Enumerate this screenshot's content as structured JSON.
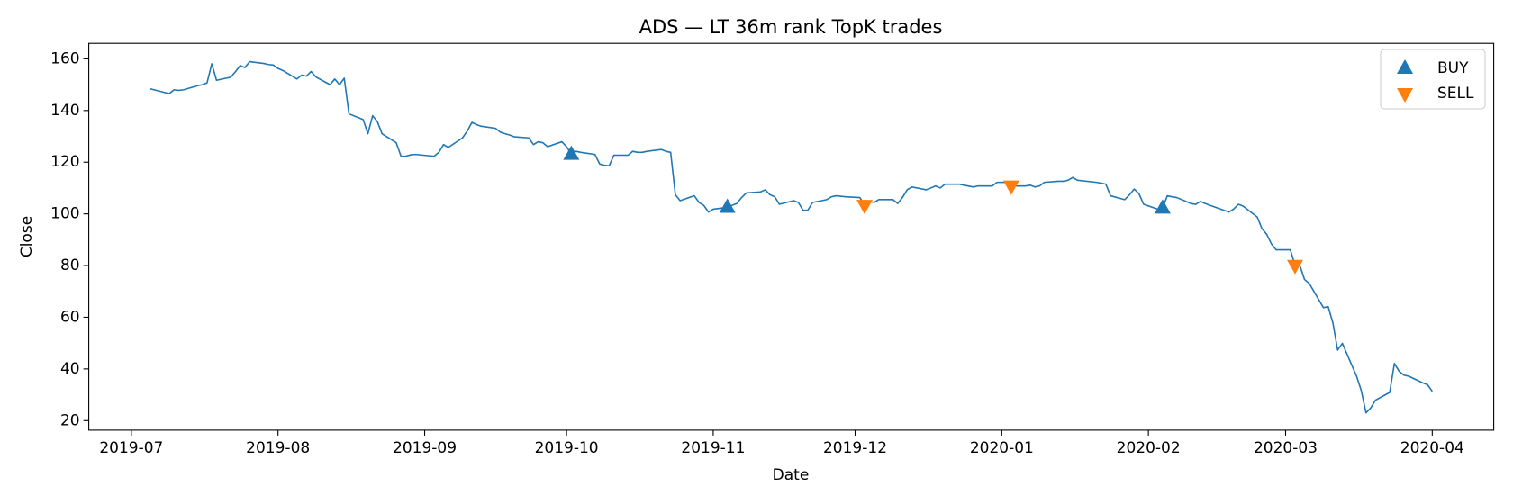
{
  "chart_data": {
    "type": "line",
    "title": "ADS — LT 36m rank TopK trades",
    "xlabel": "Date",
    "ylabel": "Close",
    "color": "#1f77b4",
    "x": [
      "2019-07-05",
      "2019-07-08",
      "2019-07-09",
      "2019-07-10",
      "2019-07-11",
      "2019-07-12",
      "2019-07-15",
      "2019-07-16",
      "2019-07-17",
      "2019-07-18",
      "2019-07-19",
      "2019-07-22",
      "2019-07-23",
      "2019-07-24",
      "2019-07-25",
      "2019-07-26",
      "2019-07-29",
      "2019-07-30",
      "2019-07-31",
      "2019-08-01",
      "2019-08-02",
      "2019-08-05",
      "2019-08-06",
      "2019-08-07",
      "2019-08-08",
      "2019-08-09",
      "2019-08-12",
      "2019-08-13",
      "2019-08-14",
      "2019-08-15",
      "2019-08-16",
      "2019-08-19",
      "2019-08-20",
      "2019-08-21",
      "2019-08-22",
      "2019-08-23",
      "2019-08-26",
      "2019-08-27",
      "2019-08-28",
      "2019-08-29",
      "2019-08-30",
      "2019-09-03",
      "2019-09-04",
      "2019-09-05",
      "2019-09-06",
      "2019-09-09",
      "2019-09-10",
      "2019-09-11",
      "2019-09-12",
      "2019-09-13",
      "2019-09-16",
      "2019-09-17",
      "2019-09-18",
      "2019-09-19",
      "2019-09-20",
      "2019-09-23",
      "2019-09-24",
      "2019-09-25",
      "2019-09-26",
      "2019-09-27",
      "2019-09-30",
      "2019-10-01",
      "2019-10-02",
      "2019-10-03",
      "2019-10-04",
      "2019-10-07",
      "2019-10-08",
      "2019-10-09",
      "2019-10-10",
      "2019-10-11",
      "2019-10-14",
      "2019-10-15",
      "2019-10-16",
      "2019-10-17",
      "2019-10-18",
      "2019-10-21",
      "2019-10-22",
      "2019-10-23",
      "2019-10-24",
      "2019-10-25",
      "2019-10-28",
      "2019-10-29",
      "2019-10-30",
      "2019-10-31",
      "2019-11-01",
      "2019-11-04",
      "2019-11-05",
      "2019-11-06",
      "2019-11-07",
      "2019-11-08",
      "2019-11-11",
      "2019-11-12",
      "2019-11-13",
      "2019-11-14",
      "2019-11-15",
      "2019-11-18",
      "2019-11-19",
      "2019-11-20",
      "2019-11-21",
      "2019-11-22",
      "2019-11-25",
      "2019-11-26",
      "2019-11-27",
      "2019-11-29",
      "2019-12-02",
      "2019-12-03",
      "2019-12-04",
      "2019-12-05",
      "2019-12-06",
      "2019-12-09",
      "2019-12-10",
      "2019-12-11",
      "2019-12-12",
      "2019-12-13",
      "2019-12-16",
      "2019-12-17",
      "2019-12-18",
      "2019-12-19",
      "2019-12-20",
      "2019-12-23",
      "2019-12-24",
      "2019-12-26",
      "2019-12-27",
      "2019-12-30",
      "2019-12-31",
      "2020-01-02",
      "2020-01-03",
      "2020-01-06",
      "2020-01-07",
      "2020-01-08",
      "2020-01-09",
      "2020-01-10",
      "2020-01-13",
      "2020-01-14",
      "2020-01-15",
      "2020-01-16",
      "2020-01-17",
      "2020-01-21",
      "2020-01-22",
      "2020-01-23",
      "2020-01-24",
      "2020-01-27",
      "2020-01-28",
      "2020-01-29",
      "2020-01-30",
      "2020-01-31",
      "2020-02-03",
      "2020-02-04",
      "2020-02-05",
      "2020-02-06",
      "2020-02-07",
      "2020-02-10",
      "2020-02-11",
      "2020-02-12",
      "2020-02-13",
      "2020-02-14",
      "2020-02-18",
      "2020-02-19",
      "2020-02-20",
      "2020-02-21",
      "2020-02-24",
      "2020-02-25",
      "2020-02-26",
      "2020-02-27",
      "2020-02-28",
      "2020-03-02",
      "2020-03-03",
      "2020-03-04",
      "2020-03-05",
      "2020-03-06",
      "2020-03-09",
      "2020-03-10",
      "2020-03-11",
      "2020-03-12",
      "2020-03-13",
      "2020-03-16",
      "2020-03-17",
      "2020-03-18",
      "2020-03-19",
      "2020-03-20",
      "2020-03-23",
      "2020-03-24",
      "2020-03-25",
      "2020-03-26",
      "2020-03-27",
      "2020-03-30",
      "2020-03-31",
      "2020-04-01"
    ],
    "values": [
      148.4,
      147,
      146.5,
      148,
      147.8,
      148,
      149.6,
      150,
      150.7,
      158.1,
      151.7,
      152.9,
      155,
      157.4,
      156.6,
      158.9,
      158.2,
      157.8,
      157.6,
      156.3,
      155.5,
      152.2,
      153.7,
      153.3,
      155.1,
      153,
      150,
      152.2,
      150,
      152.5,
      138.7,
      136.5,
      131,
      138,
      135.7,
      131,
      127.5,
      122.3,
      122.3,
      122.8,
      123,
      122.3,
      123.8,
      126.8,
      125.7,
      129.4,
      132,
      135.4,
      134.5,
      133.9,
      133.1,
      131.6,
      131,
      130.5,
      129.8,
      129.4,
      126.8,
      127.9,
      127.5,
      126,
      127.9,
      126,
      123,
      124.2,
      123.8,
      123,
      119.3,
      118.8,
      118.6,
      122.7,
      122.7,
      124.2,
      123.8,
      123.8,
      124.2,
      124.9,
      124.2,
      123.8,
      107.4,
      105.1,
      107,
      104.4,
      103.3,
      100.7,
      101.8,
      102.5,
      103.3,
      104,
      106.3,
      108.1,
      108.5,
      109.3,
      107.4,
      106.6,
      103.7,
      105.1,
      104.4,
      101.4,
      101.4,
      104.4,
      105.5,
      106.6,
      107,
      106.6,
      106.3,
      103.3,
      104.8,
      104.4,
      105.5,
      105.5,
      104,
      106.3,
      109.3,
      110.4,
      109.3,
      110,
      110.8,
      110,
      111.5,
      111.5,
      111.1,
      110.4,
      110.8,
      110.8,
      112.2,
      112.2,
      110.8,
      110.8,
      111.1,
      110.4,
      110.8,
      112.2,
      112.6,
      112.6,
      113,
      114.1,
      113,
      112.2,
      111.9,
      111.5,
      107,
      105.5,
      107.4,
      109.6,
      107.8,
      103.7,
      101.8,
      102.2,
      107,
      106.6,
      106.3,
      104,
      103.7,
      104.8,
      104,
      103.3,
      100.7,
      101.8,
      103.7,
      103,
      98.8,
      94.3,
      92.1,
      88.4,
      86.1,
      86.1,
      80.1,
      80.1,
      74.6,
      73.1,
      63.7,
      64.1,
      57.8,
      47.3,
      49.9,
      37.2,
      31.6,
      23,
      24.9,
      27.9,
      30.9,
      42.1,
      39.1,
      37.6,
      37.2,
      34.6,
      33.9,
      31.3
    ],
    "markers": [
      {
        "name": "BUY",
        "color": "#1f77b4",
        "marker": "up",
        "x": [
          "2019-10-02",
          "2019-11-04",
          "2020-02-04"
        ],
        "values": [
          123,
          102.5,
          102.2
        ]
      },
      {
        "name": "SELL",
        "color": "#ff7f0e",
        "marker": "down",
        "x": [
          "2019-12-03",
          "2020-01-03",
          "2020-03-03"
        ],
        "values": [
          103.3,
          110.8,
          80.1
        ]
      }
    ],
    "xlim": [
      "2019-06-22",
      "2020-04-14"
    ],
    "xticks": [
      "2019-07",
      "2019-08",
      "2019-09",
      "2019-10",
      "2019-11",
      "2019-12",
      "2020-01",
      "2020-02",
      "2020-03",
      "2020-04"
    ],
    "ylim": [
      16.3,
      166
    ],
    "yticks": [
      20,
      40,
      60,
      80,
      100,
      120,
      140,
      160
    ],
    "legend": "upper right"
  }
}
